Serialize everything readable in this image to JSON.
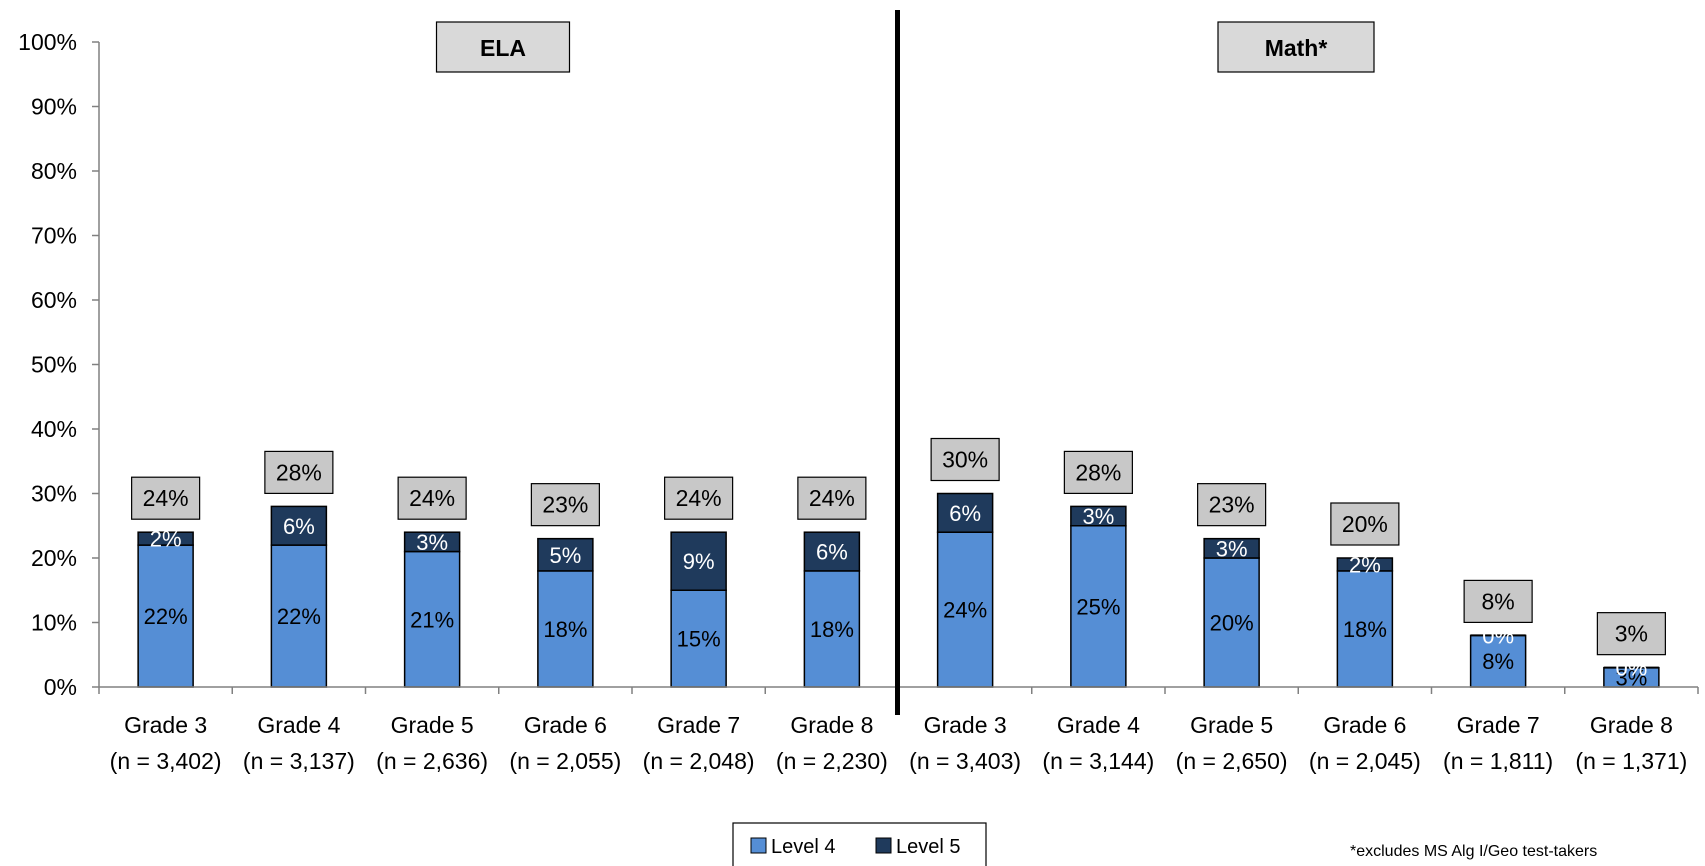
{
  "chart_data": {
    "type": "bar",
    "stacked": true,
    "panels": [
      {
        "label": "ELA",
        "categories": [
          0,
          1,
          2,
          3,
          4,
          5
        ]
      },
      {
        "label": "Math*",
        "categories": [
          6,
          7,
          8,
          9,
          10,
          11
        ]
      }
    ],
    "categories": [
      {
        "grade": "Grade 3",
        "n": "(n = 3,402)"
      },
      {
        "grade": "Grade 4",
        "n": "(n = 3,137)"
      },
      {
        "grade": "Grade 5",
        "n": "(n = 2,636)"
      },
      {
        "grade": "Grade 6",
        "n": "(n = 2,055)"
      },
      {
        "grade": "Grade 7",
        "n": "(n = 2,048)"
      },
      {
        "grade": "Grade 8",
        "n": "(n = 2,230)"
      },
      {
        "grade": "Grade 3",
        "n": "(n = 3,403)"
      },
      {
        "grade": "Grade 4",
        "n": "(n = 3,144)"
      },
      {
        "grade": "Grade 5",
        "n": "(n = 2,650)"
      },
      {
        "grade": "Grade 6",
        "n": "(n = 2,045)"
      },
      {
        "grade": "Grade 7",
        "n": "(n = 1,811)"
      },
      {
        "grade": "Grade 8",
        "n": "(n = 1,371)"
      }
    ],
    "series": [
      {
        "name": "Level 4",
        "color": "#558ed5",
        "label_color": "#000000",
        "values": [
          22,
          22,
          21,
          18,
          15,
          18,
          24,
          25,
          20,
          18,
          8,
          3
        ],
        "labels": [
          "22%",
          "22%",
          "21%",
          "18%",
          "15%",
          "18%",
          "24%",
          "25%",
          "20%",
          "18%",
          "8%",
          "3%"
        ]
      },
      {
        "name": "Level 5",
        "color": "#1f3a5c",
        "label_color": "#ffffff",
        "values": [
          2,
          6,
          3,
          5,
          9,
          6,
          6,
          3,
          3,
          2,
          0,
          0
        ],
        "labels": [
          "2%",
          "6%",
          "3%",
          "5%",
          "9%",
          "6%",
          "6%",
          "3%",
          "3%",
          "2%",
          "0%",
          "0%"
        ]
      }
    ],
    "totals": [
      24,
      28,
      24,
      23,
      24,
      24,
      30,
      28,
      23,
      20,
      8,
      3
    ],
    "total_labels": [
      "24%",
      "28%",
      "24%",
      "23%",
      "24%",
      "24%",
      "30%",
      "28%",
      "23%",
      "20%",
      "8%",
      "3%"
    ],
    "ylim": [
      0,
      100
    ],
    "yticks": [
      "0%",
      "10%",
      "20%",
      "30%",
      "40%",
      "50%",
      "60%",
      "70%",
      "80%",
      "90%",
      "100%"
    ],
    "legend": {
      "position": "bottom-center",
      "entries": [
        "Level 4",
        "Level 5"
      ]
    },
    "grid": false,
    "footnote": "*excludes MS Alg I/Geo test-takers"
  }
}
